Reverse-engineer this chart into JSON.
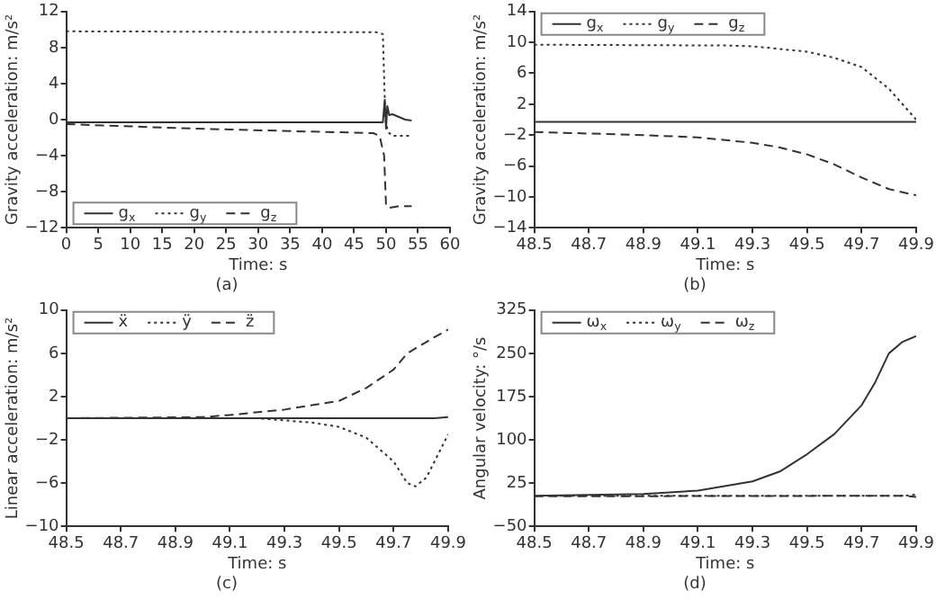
{
  "chart_data": [
    {
      "type": "line",
      "xlabel": "Time: s",
      "ylabel": "Gravity acceleration: m/s²",
      "annotations": [
        "(a)"
      ],
      "xlim": [
        0,
        60
      ],
      "xticks": [
        0,
        5,
        10,
        15,
        20,
        25,
        30,
        35,
        40,
        45,
        50,
        55,
        60
      ],
      "ylim": [
        -12,
        12
      ],
      "yticks": [
        -12,
        -8,
        -4,
        0,
        4,
        8,
        12
      ],
      "grid": false,
      "legend": "bottom left",
      "marker": "none",
      "series": [
        {
          "name": "g$_{x}$",
          "color": "#333333",
          "line_style": "solid",
          "x": [
            0,
            49.5,
            49.8,
            50,
            50.2,
            50.5,
            51,
            52,
            53,
            54
          ],
          "values": [
            -0.3,
            -0.3,
            2.2,
            -1,
            1.5,
            0.5,
            0.6,
            0.3,
            0,
            -0.1
          ]
        },
        {
          "name": "g$_{y}$",
          "color": "#333333",
          "line_style": "dotted",
          "x": [
            0,
            48.5,
            49.5,
            49.9,
            50.2,
            50.5,
            51,
            54
          ],
          "values": [
            9.8,
            9.7,
            9.5,
            0,
            -1,
            -1.5,
            -1.8,
            -1.8
          ]
        },
        {
          "name": "g$_{z}$",
          "color": "#333333",
          "line_style": "dashed",
          "x": [
            0,
            20,
            48,
            49,
            49.7,
            50,
            50.5,
            52,
            54
          ],
          "values": [
            -0.5,
            -1,
            -1.5,
            -1.8,
            -4,
            -9.5,
            -9.8,
            -9.6,
            -9.6
          ]
        }
      ]
    },
    {
      "type": "line",
      "xlabel": "Time: s",
      "ylabel": "Gravity acceleration: m/s²",
      "annotations": [
        "(b)"
      ],
      "xlim": [
        48.5,
        49.9
      ],
      "xticks": [
        48.5,
        48.7,
        48.9,
        49.1,
        49.3,
        49.5,
        49.7,
        49.9
      ],
      "ylim": [
        -14,
        14
      ],
      "yticks": [
        -14,
        -10,
        -6,
        -2,
        2,
        6,
        10,
        14
      ],
      "grid": false,
      "legend": "top left",
      "marker": "none",
      "series": [
        {
          "name": "g$_{x}$",
          "color": "#333333",
          "line_style": "solid",
          "x": [
            48.5,
            49.9
          ],
          "values": [
            -0.3,
            -0.3
          ]
        },
        {
          "name": "g$_{y}$",
          "color": "#333333",
          "line_style": "dotted",
          "x": [
            48.5,
            49.2,
            49.3,
            49.5,
            49.6,
            49.7,
            49.8,
            49.9
          ],
          "values": [
            9.7,
            9.6,
            9.5,
            8.8,
            8,
            6.8,
            4,
            0
          ]
        },
        {
          "name": "g$_{z}$",
          "color": "#333333",
          "line_style": "dashed",
          "x": [
            48.5,
            48.9,
            49.1,
            49.3,
            49.4,
            49.5,
            49.6,
            49.7,
            49.8,
            49.9
          ],
          "values": [
            -1.6,
            -2,
            -2.3,
            -3,
            -3.6,
            -4.5,
            -5.8,
            -7.5,
            -9,
            -9.8
          ]
        }
      ]
    },
    {
      "type": "line",
      "xlabel": "Time: s",
      "ylabel": "Linear acceleration: m/s²",
      "annotations": [
        "(c)"
      ],
      "xlim": [
        48.5,
        49.9
      ],
      "xticks": [
        48.5,
        48.7,
        48.9,
        49.1,
        49.3,
        49.5,
        49.7,
        49.9
      ],
      "ylim": [
        -10,
        10
      ],
      "yticks": [
        -10,
        -6,
        -2,
        2,
        6,
        10
      ],
      "grid": false,
      "legend": "top left",
      "marker": "none",
      "series": [
        {
          "name": "ẍ",
          "color": "#333333",
          "line_style": "solid",
          "x": [
            48.5,
            49.85,
            49.9
          ],
          "values": [
            0,
            0,
            0.1
          ]
        },
        {
          "name": "ÿ",
          "color": "#333333",
          "line_style": "dotted",
          "x": [
            48.5,
            49.2,
            49.4,
            49.5,
            49.6,
            49.7,
            49.75,
            49.78,
            49.82,
            49.86,
            49.9
          ],
          "values": [
            0,
            0,
            -0.4,
            -0.8,
            -1.8,
            -4,
            -6,
            -6.3,
            -5.5,
            -3.5,
            -1.5
          ]
        },
        {
          "name": "z̈",
          "color": "#333333",
          "line_style": "dashed",
          "x": [
            48.5,
            49,
            49.1,
            49.3,
            49.5,
            49.6,
            49.7,
            49.75,
            49.85,
            49.9
          ],
          "values": [
            0,
            0.1,
            0.3,
            0.8,
            1.6,
            2.8,
            4.5,
            6,
            7.5,
            8.2
          ]
        }
      ]
    },
    {
      "type": "line",
      "xlabel": "Time: s",
      "ylabel": "Angular velocity: °/s",
      "annotations": [
        "(d)"
      ],
      "xlim": [
        48.5,
        49.9
      ],
      "xticks": [
        48.5,
        48.7,
        48.9,
        49.1,
        49.3,
        49.5,
        49.7,
        49.9
      ],
      "ylim": [
        -50,
        325
      ],
      "yticks": [
        -50,
        25,
        100,
        175,
        250,
        325
      ],
      "grid": false,
      "legend": "top left",
      "marker": "none",
      "series": [
        {
          "name": "ω$_{x}$",
          "color": "#333333",
          "line_style": "solid",
          "x": [
            48.5,
            48.9,
            49.1,
            49.3,
            49.4,
            49.5,
            49.6,
            49.7,
            49.75,
            49.8,
            49.85,
            49.9
          ],
          "values": [
            3,
            6,
            12,
            28,
            45,
            75,
            110,
            160,
            200,
            250,
            270,
            280
          ]
        },
        {
          "name": "ω$_{y}$",
          "color": "#333333",
          "line_style": "dotted",
          "x": [
            48.5,
            49.85,
            49.9
          ],
          "values": [
            3,
            3,
            5
          ]
        },
        {
          "name": "ω$_{z}$",
          "color": "#333333",
          "line_style": "dashed",
          "x": [
            48.5,
            49.85,
            49.9
          ],
          "values": [
            2,
            3,
            1
          ]
        }
      ]
    }
  ]
}
